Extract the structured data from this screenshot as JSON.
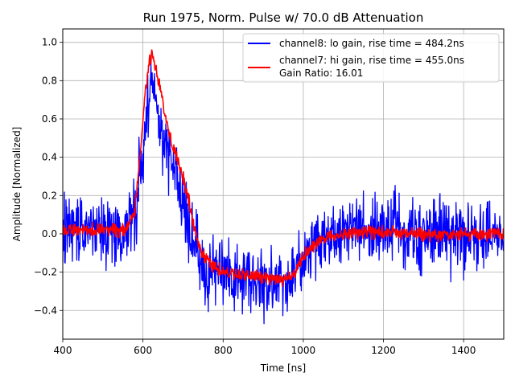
{
  "chart_data": {
    "type": "line",
    "title": "Run 1975, Norm. Pulse w/ 70.0 dB Attenuation",
    "xlabel": "Time [ns]",
    "ylabel": "Amplitude [Normalized]",
    "xlim": [
      400,
      1500
    ],
    "ylim": [
      -0.55,
      1.07
    ],
    "xticks": [
      400,
      600,
      800,
      1000,
      1200,
      1400
    ],
    "yticks": [
      -0.4,
      -0.2,
      0.0,
      0.2,
      0.4,
      0.6,
      0.8,
      1.0
    ],
    "xtick_labels": [
      "400",
      "600",
      "800",
      "1000",
      "1200",
      "1400"
    ],
    "ytick_labels": [
      "−0.4",
      "−0.2",
      "0.0",
      "0.2",
      "0.4",
      "0.6",
      "0.8",
      "1.0"
    ],
    "grid": true,
    "legend_position": "top-right",
    "legend_extra_line": "Gain Ratio: 16.01",
    "series": [
      {
        "name": "channel8: lo gain, rise time = 484.2ns",
        "color": "#0000ff",
        "noise_amplitude": 0.17,
        "envelope": [
          [
            400,
            0.02
          ],
          [
            560,
            0.02
          ],
          [
            580,
            0.1
          ],
          [
            600,
            0.42
          ],
          [
            615,
            0.7
          ],
          [
            625,
            0.78
          ],
          [
            640,
            0.55
          ],
          [
            660,
            0.48
          ],
          [
            680,
            0.32
          ],
          [
            700,
            0.18
          ],
          [
            720,
            0.0
          ],
          [
            740,
            -0.12
          ],
          [
            760,
            -0.18
          ],
          [
            800,
            -0.2
          ],
          [
            850,
            -0.22
          ],
          [
            900,
            -0.24
          ],
          [
            950,
            -0.24
          ],
          [
            980,
            -0.2
          ],
          [
            1000,
            -0.14
          ],
          [
            1030,
            -0.05
          ],
          [
            1060,
            -0.01
          ],
          [
            1100,
            0.0
          ],
          [
            1200,
            0.01
          ],
          [
            1300,
            0.0
          ],
          [
            1400,
            0.0
          ],
          [
            1500,
            0.0
          ]
        ]
      },
      {
        "name": "channel7: hi gain, rise time = 455.0ns",
        "color": "#ff0000",
        "noise_amplitude": 0.035,
        "envelope": [
          [
            400,
            0.02
          ],
          [
            560,
            0.02
          ],
          [
            580,
            0.12
          ],
          [
            595,
            0.45
          ],
          [
            605,
            0.72
          ],
          [
            615,
            0.9
          ],
          [
            625,
            0.93
          ],
          [
            640,
            0.8
          ],
          [
            655,
            0.62
          ],
          [
            670,
            0.48
          ],
          [
            690,
            0.36
          ],
          [
            710,
            0.22
          ],
          [
            725,
            0.05
          ],
          [
            745,
            -0.1
          ],
          [
            770,
            -0.16
          ],
          [
            800,
            -0.2
          ],
          [
            850,
            -0.21
          ],
          [
            900,
            -0.23
          ],
          [
            950,
            -0.24
          ],
          [
            980,
            -0.2
          ],
          [
            1000,
            -0.12
          ],
          [
            1030,
            -0.05
          ],
          [
            1060,
            -0.01
          ],
          [
            1100,
            0.0
          ],
          [
            1200,
            0.01
          ],
          [
            1300,
            0.0
          ],
          [
            1400,
            0.0
          ],
          [
            1500,
            0.0
          ]
        ]
      }
    ]
  }
}
